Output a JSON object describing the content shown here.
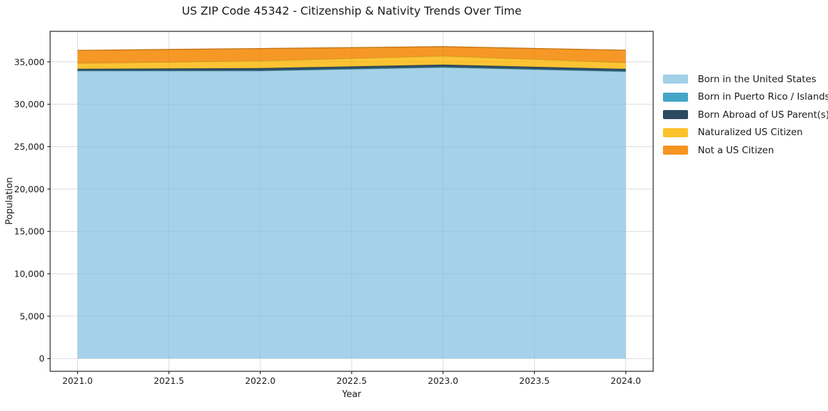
{
  "chart_data": {
    "type": "area",
    "stacked": true,
    "title": "US ZIP Code 45342 - Citizenship & Nativity Trends Over Time",
    "xlabel": "Year",
    "ylabel": "Population",
    "x": [
      2021,
      2022,
      2023,
      2024
    ],
    "series": [
      {
        "name": "Born in the United States",
        "color": "#a2d1e8",
        "values": [
          33930,
          33930,
          34340,
          33850
        ]
      },
      {
        "name": "Born in Puerto Rico / Islands",
        "color": "#45a5c6",
        "values": [
          40,
          50,
          50,
          50
        ]
      },
      {
        "name": "Born Abroad of US Parent(s)",
        "color": "#2b4a60",
        "values": [
          210,
          280,
          280,
          275
        ]
      },
      {
        "name": "Naturalized US Citizen",
        "color": "#fcc22d",
        "values": [
          660,
          870,
          1030,
          745
        ]
      },
      {
        "name": "Not a US Citizen",
        "color": "#f6951f",
        "values": [
          1520,
          1440,
          1090,
          1450
        ]
      }
    ],
    "x_ticks": [
      2021.0,
      2021.5,
      2022.0,
      2022.5,
      2023.0,
      2023.5,
      2024.0
    ],
    "x_tick_labels": [
      "2021.0",
      "2021.5",
      "2022.0",
      "2022.5",
      "2023.0",
      "2023.5",
      "2024.0"
    ],
    "y_ticks": [
      0,
      5000,
      10000,
      15000,
      20000,
      25000,
      30000,
      35000
    ],
    "y_tick_labels": [
      "0",
      "5,000",
      "10,000",
      "15,000",
      "20,000",
      "25,000",
      "30,000",
      "35,000"
    ],
    "xlim": [
      2020.85,
      2024.15
    ],
    "ylim": [
      -1500,
      38600
    ],
    "grid": true,
    "legend_position": "right-outside",
    "frame_color": "#262626",
    "grid_color": "#e7e7e7"
  }
}
